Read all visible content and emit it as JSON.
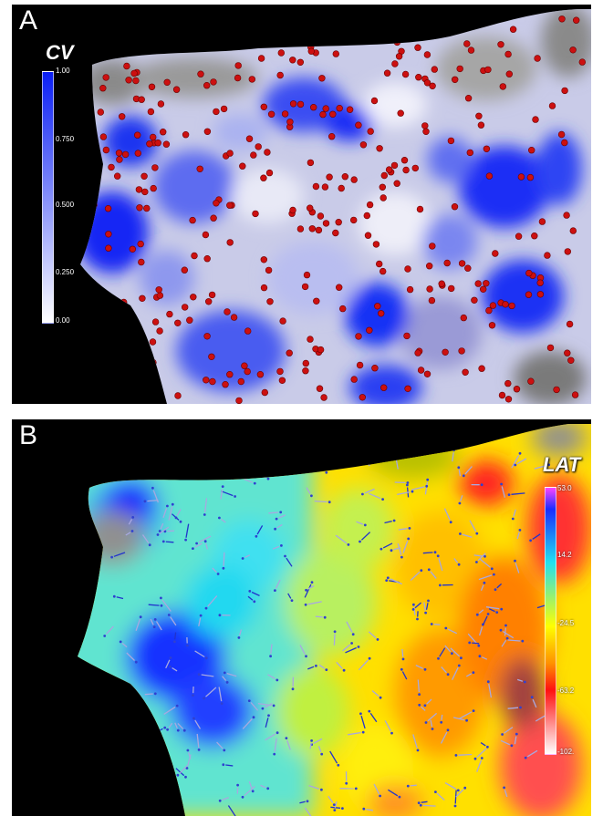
{
  "panel_a": {
    "letter": "A",
    "scale_title": "CV",
    "ticks": [
      "1.00",
      "0.750",
      "0.500",
      "0.250",
      "0.00"
    ],
    "colors": {
      "high": "#0a1ef5",
      "low": "#ffffff",
      "points": "#cc1010"
    }
  },
  "panel_b": {
    "letter": "B",
    "scale_title": "LAT",
    "ticks": [
      "53.0",
      "14.2",
      "-24.5",
      "-63.2",
      "-102."
    ],
    "colors": {
      "top": "#ff44ff",
      "blue": "#1a2cff",
      "cyan": "#20e0f0",
      "yellow": "#ffff00",
      "red": "#ff1010",
      "bottom": "#ffffff",
      "arrows": "#a8a8e0"
    }
  }
}
